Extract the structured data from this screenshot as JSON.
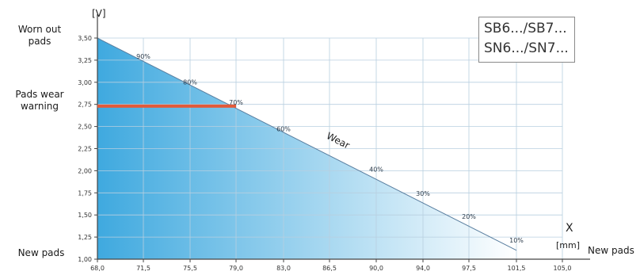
{
  "chart_data": {
    "type": "area",
    "y_unit": "[V]",
    "x_label": "X",
    "x_unit": "[mm]",
    "x_ticks": [
      "68,0",
      "71,5",
      "75,5",
      "79,0",
      "83,0",
      "86,5",
      "90,0",
      "94,0",
      "97,5",
      "101,5",
      "105,0"
    ],
    "y_ticks": [
      "1,00",
      "1,25",
      "1,50",
      "1,75",
      "2,00",
      "2,25",
      "2,50",
      "2,75",
      "3,00",
      "3,25",
      "3,50"
    ],
    "xlim": [
      68.0,
      105.0
    ],
    "ylim": [
      1.0,
      3.5
    ],
    "series": [
      {
        "x": [
          68.0,
          101.5
        ],
        "y": [
          3.5,
          1.1
        ]
      }
    ],
    "wear_points": [
      {
        "label": "90%",
        "x": 71.5,
        "y": 3.25
      },
      {
        "label": "80%",
        "x": 75.5,
        "y": 2.96
      },
      {
        "label": "70%",
        "x": 79.0,
        "y": 2.73
      },
      {
        "label": "60%",
        "x": 83.0,
        "y": 2.43
      },
      {
        "label": "40%",
        "x": 90.0,
        "y": 1.97
      },
      {
        "label": "30%",
        "x": 94.0,
        "y": 1.7
      },
      {
        "label": "20%",
        "x": 97.5,
        "y": 1.44
      },
      {
        "label": "10%",
        "x": 101.5,
        "y": 1.17
      }
    ],
    "warning_line": {
      "y": 2.73,
      "x_start": 68.0,
      "x_end": 79.0,
      "color": "#e25a3a"
    },
    "curve_label": "Wear",
    "grid": true,
    "fill_colors": {
      "left": "#3fa9df",
      "right": "#ffffff"
    }
  },
  "labels": {
    "worn_out": "Worn out\npads",
    "wear_warning": "Pads wear\nwarning",
    "new_pads_left": "New pads",
    "new_pads_right": "New pads"
  },
  "models": {
    "line1": "SB6.../SB7...",
    "line2": "SN6.../SN7..."
  }
}
